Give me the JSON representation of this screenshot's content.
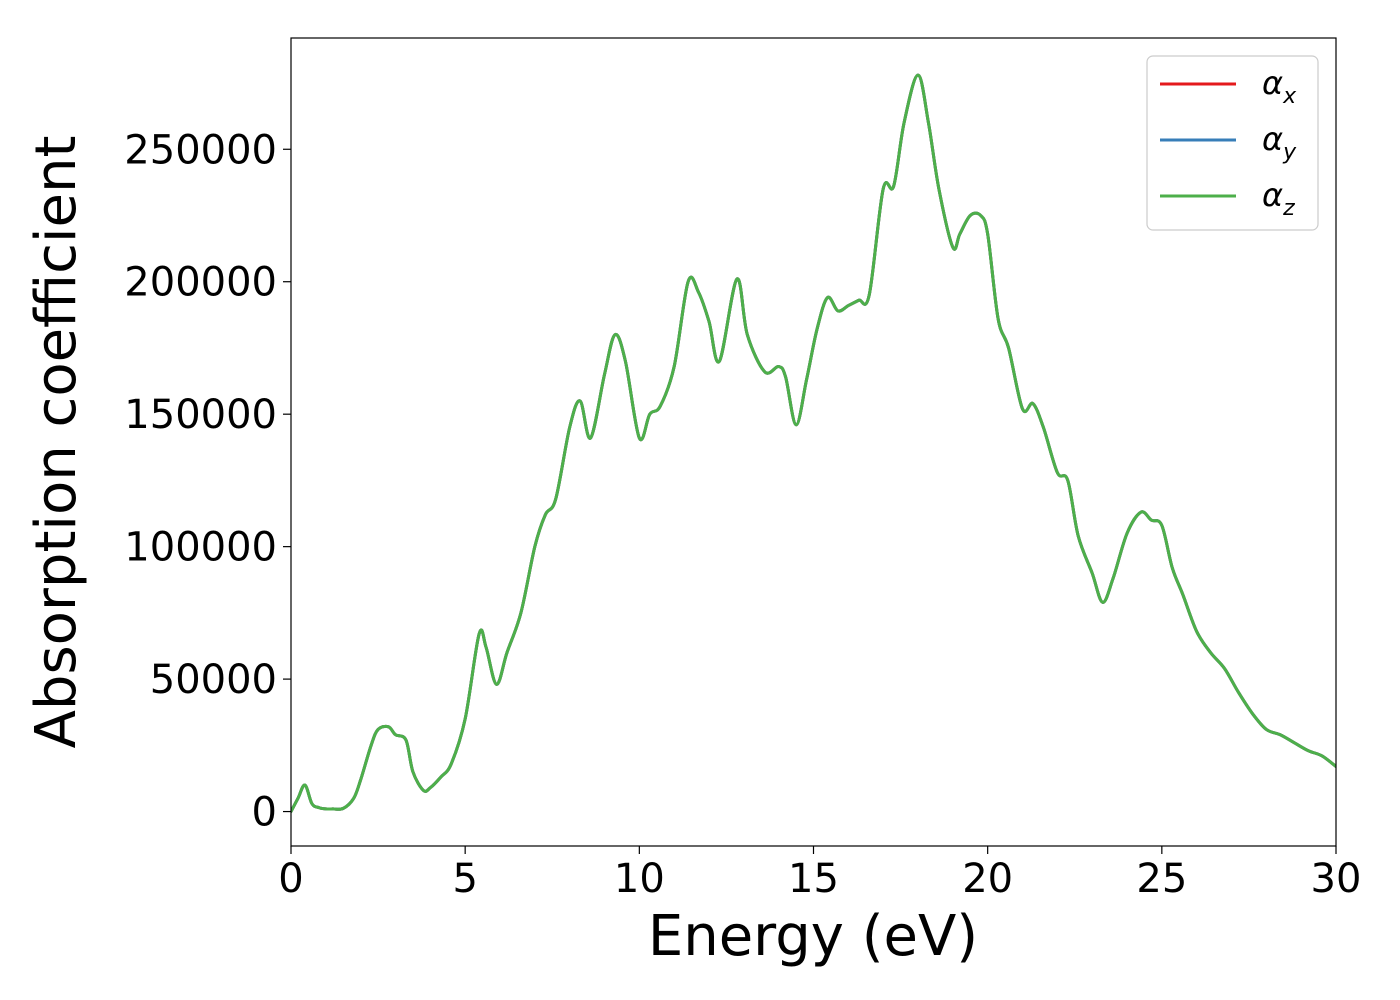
{
  "chart_data": {
    "type": "line",
    "title": "",
    "xlabel": "Energy (eV)",
    "ylabel": "Absorption coefficient",
    "xlim": [
      0,
      30
    ],
    "ylim": [
      -13000,
      292000
    ],
    "xticks": [
      0,
      5,
      10,
      15,
      20,
      25,
      30
    ],
    "yticks": [
      0,
      50000,
      100000,
      150000,
      200000,
      250000
    ],
    "xtick_labels": [
      "0",
      "5",
      "10",
      "15",
      "20",
      "25",
      "30"
    ],
    "ytick_labels": [
      "0",
      "50000",
      "100000",
      "150000",
      "200000",
      "250000"
    ],
    "grid": false,
    "legend": "top-right",
    "series": [
      {
        "name": "α",
        "subscript": "x",
        "color": "#e41a1c"
      },
      {
        "name": "α",
        "subscript": "y",
        "color": "#377eb8"
      },
      {
        "name": "α",
        "subscript": "z",
        "color": "#4daf4a"
      }
    ],
    "x": [
      0,
      0.2,
      0.4,
      0.6,
      0.8,
      1.0,
      1.2,
      1.5,
      1.8,
      2.0,
      2.3,
      2.5,
      2.8,
      3.0,
      3.3,
      3.5,
      3.8,
      4.0,
      4.3,
      4.6,
      5.0,
      5.4,
      5.6,
      5.9,
      6.2,
      6.6,
      7.0,
      7.3,
      7.6,
      8.0,
      8.3,
      8.6,
      9.0,
      9.3,
      9.6,
      10.0,
      10.3,
      10.6,
      11.0,
      11.4,
      11.7,
      12.0,
      12.3,
      12.8,
      13.1,
      13.6,
      14.0,
      14.2,
      14.5,
      14.8,
      15.1,
      15.4,
      15.7,
      16.0,
      16.3,
      16.6,
      17.0,
      17.3,
      17.6,
      18.0,
      18.3,
      18.6,
      19.0,
      19.2,
      19.5,
      19.8,
      20.0,
      20.3,
      20.6,
      21.0,
      21.3,
      21.6,
      22.0,
      22.3,
      22.6,
      23.0,
      23.3,
      23.6,
      24.0,
      24.4,
      24.7,
      25.0,
      25.3,
      25.6,
      26.0,
      26.4,
      26.8,
      27.2,
      27.6,
      28.0,
      28.4,
      28.8,
      29.2,
      29.6,
      30.0
    ],
    "values": [
      0,
      5000,
      10000,
      3000,
      1500,
      1000,
      1000,
      1200,
      5000,
      12000,
      25000,
      31000,
      32000,
      29000,
      27000,
      15000,
      8000,
      9000,
      13000,
      18000,
      35000,
      67000,
      62000,
      48000,
      60000,
      75000,
      100000,
      112000,
      118000,
      145000,
      155000,
      141000,
      165000,
      180000,
      170000,
      141000,
      150000,
      153000,
      168000,
      200000,
      196000,
      185000,
      170000,
      201000,
      180000,
      166000,
      168000,
      164000,
      146000,
      163000,
      182000,
      194000,
      189000,
      191000,
      193000,
      195000,
      235000,
      236000,
      260000,
      278000,
      260000,
      235000,
      213000,
      218000,
      225000,
      225000,
      218000,
      186000,
      175000,
      152000,
      154000,
      145000,
      128000,
      125000,
      104000,
      90000,
      79000,
      88000,
      105000,
      113000,
      110000,
      108000,
      92000,
      82000,
      68000,
      60000,
      54000,
      45000,
      37000,
      31000,
      29000,
      26000,
      23000,
      21000,
      17000
    ]
  }
}
